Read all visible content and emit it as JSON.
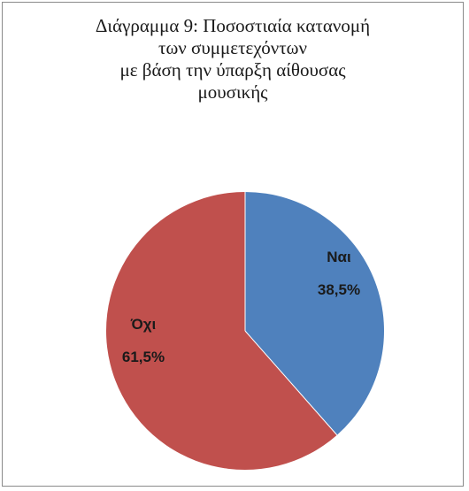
{
  "chart_data": {
    "type": "pie",
    "title_lines": [
      "Διάγραμμα 9: Ποσοστιαία κατανομή",
      "των συμμετεχόντων",
      "με βάση την ύπαρξη αίθουσας",
      "μουσικής"
    ],
    "slices": [
      {
        "label": "Ναι",
        "value": 38.5,
        "value_label": "38,5%",
        "color": "#4f81bd"
      },
      {
        "label": "Όχι",
        "value": 61.5,
        "value_label": "61,5%",
        "color": "#c0504d"
      }
    ],
    "start": "top",
    "direction": "clockwise",
    "legend": "none"
  }
}
